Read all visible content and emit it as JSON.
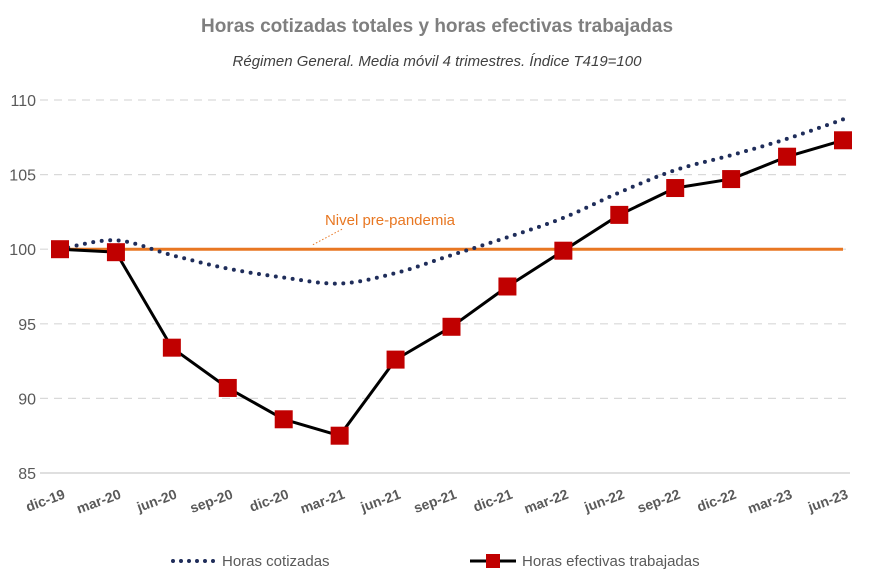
{
  "chart_data": {
    "type": "line",
    "title": "Horas cotizadas totales y horas efectivas trabajadas",
    "subtitle": "Régimen General. Media móvil 4 trimestres. Índice T419=100",
    "categories": [
      "dic-19",
      "mar-20",
      "jun-20",
      "sep-20",
      "dic-20",
      "mar-21",
      "jun-21",
      "sep-21",
      "dic-21",
      "mar-22",
      "jun-22",
      "sep-22",
      "dic-22",
      "mar-23",
      "jun-23"
    ],
    "ylim": [
      85,
      110
    ],
    "yticks": [
      85,
      90,
      95,
      100,
      105,
      110
    ],
    "grid": true,
    "legend_position": "bottom",
    "series": [
      {
        "name": "Horas cotizadas",
        "style": "dotted",
        "color": "#1f2d5a",
        "values": [
          100.0,
          100.6,
          99.6,
          98.7,
          98.1,
          97.7,
          98.4,
          99.6,
          100.8,
          102.1,
          103.8,
          105.3,
          106.3,
          107.4,
          108.7
        ]
      },
      {
        "name": "Horas efectivas trabajadas",
        "style": "solid-square-markers",
        "color": "#000000",
        "marker_color": "#c00000",
        "values": [
          100.0,
          99.8,
          93.4,
          90.7,
          88.6,
          87.5,
          92.6,
          94.8,
          97.5,
          99.9,
          102.3,
          104.1,
          104.7,
          106.2,
          107.3
        ]
      }
    ],
    "reference_line": {
      "value": 100,
      "label": "Nivel pre-pandemia",
      "color": "#e87722"
    }
  }
}
